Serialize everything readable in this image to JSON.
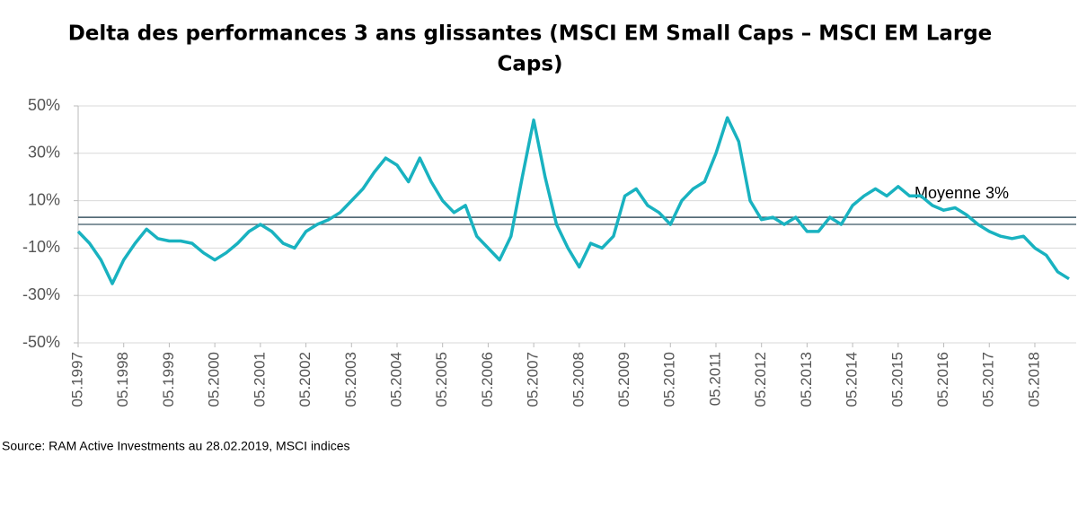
{
  "chart_data": {
    "type": "line",
    "title_lines": [
      "Delta des performances 3 ans glissantes (MSCI EM Small Caps – MSCI EM Large",
      "Caps)"
    ],
    "source": "Source: RAM Active Investments au 28.02.2019, MSCI indices",
    "categories": [
      "05.1997",
      null,
      null,
      null,
      "05.1998",
      null,
      null,
      null,
      "05.1999",
      null,
      null,
      null,
      "05.2000",
      null,
      null,
      null,
      "05.2001",
      null,
      null,
      null,
      "05.2002",
      null,
      null,
      null,
      "05.2003",
      null,
      null,
      null,
      "05.2004",
      null,
      null,
      null,
      "05.2005",
      null,
      null,
      null,
      "05.2006",
      null,
      null,
      null,
      "05.2007",
      null,
      null,
      null,
      "05.2008",
      null,
      null,
      null,
      "05.2009",
      null,
      null,
      null,
      "05.2010",
      null,
      null,
      null,
      "05.2011",
      null,
      null,
      null,
      "05.2012",
      null,
      null,
      null,
      "05.2013",
      null,
      null,
      null,
      "05.2014",
      null,
      null,
      null,
      "05.2015",
      null,
      null,
      null,
      "05.2016",
      null,
      null,
      null,
      "05.2017",
      null,
      null,
      null,
      "05.2018",
      null,
      null,
      null
    ],
    "series": [
      {
        "color": "#19b2c0",
        "values": [
          -3,
          -8,
          -15,
          -25,
          -15,
          -8,
          -2,
          -6,
          -7,
          -7,
          -8,
          -12,
          -15,
          -12,
          -8,
          -3,
          0,
          -3,
          -8,
          -10,
          -3,
          0,
          2,
          5,
          10,
          15,
          22,
          28,
          25,
          18,
          28,
          18,
          10,
          5,
          8,
          -5,
          -10,
          -15,
          -5,
          20,
          44,
          20,
          0,
          -10,
          -18,
          -8,
          -10,
          -5,
          12,
          15,
          8,
          5,
          0,
          10,
          15,
          18,
          30,
          45,
          35,
          10,
          2,
          3,
          0,
          3,
          -3,
          -3,
          3,
          0,
          8,
          12,
          15,
          12,
          16,
          12,
          12,
          8,
          6,
          7,
          4,
          0,
          -3,
          -5,
          -6,
          -5,
          -10,
          -13,
          -20,
          -23
        ]
      }
    ],
    "ylim": [
      -50,
      50
    ],
    "yticks": [
      {
        "value": 50,
        "label": "50%"
      },
      {
        "value": 30,
        "label": "30%"
      },
      {
        "value": 10,
        "label": "10%"
      },
      {
        "value": -10,
        "label": "-10%"
      },
      {
        "value": -30,
        "label": "-30%"
      },
      {
        "value": -50,
        "label": "-50%"
      }
    ],
    "grid": true,
    "zero_line": true,
    "mean_line": {
      "value": 3,
      "label": "Moyenne 3%",
      "color": "#3b5663"
    }
  }
}
